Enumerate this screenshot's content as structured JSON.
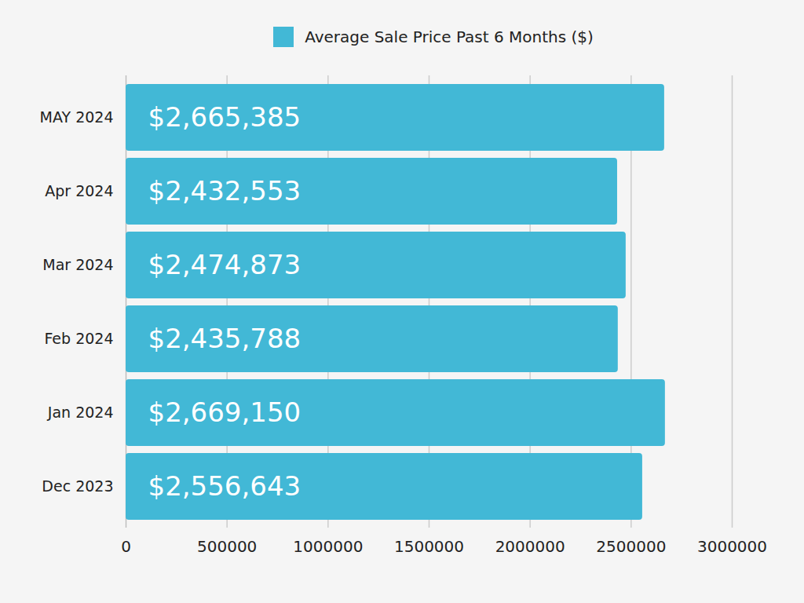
{
  "chart_data": {
    "type": "bar",
    "orientation": "horizontal",
    "categories": [
      "MAY 2024",
      "Apr 2024",
      "Mar 2024",
      "Feb 2024",
      "Jan 2024",
      "Dec 2023"
    ],
    "series": [
      {
        "name": "Average Sale Price Past 6 Months ($)",
        "color": "#42b8d6",
        "values": [
          2665385,
          2432553,
          2474873,
          2435788,
          2669150,
          2556643
        ],
        "value_labels": [
          "$2,665,385",
          "$2,432,553",
          "$2,474,873",
          "$2,435,788",
          "$2,669,150",
          "$2,556,643"
        ]
      }
    ],
    "xlim": [
      0,
      3000000
    ],
    "xticks": [
      0,
      500000,
      1000000,
      1500000,
      2000000,
      2500000,
      3000000
    ],
    "grid": true,
    "legend": "top",
    "data_labels": true
  }
}
